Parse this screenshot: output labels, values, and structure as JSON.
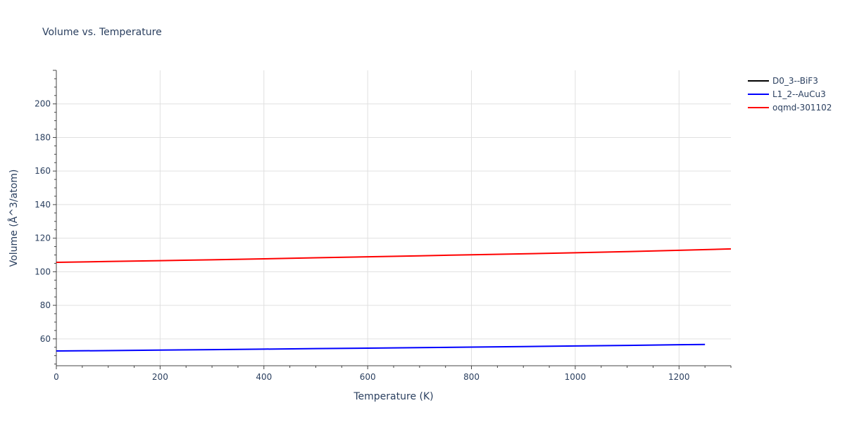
{
  "chart_data": {
    "type": "line",
    "title": "Volume vs. Temperature",
    "xlabel": "Temperature (K)",
    "ylabel": "Volume (Å^3/atom)",
    "xlim": [
      0,
      1300
    ],
    "ylim": [
      44,
      220
    ],
    "x_ticks": [
      0,
      200,
      400,
      600,
      800,
      1000,
      1200
    ],
    "y_ticks": [
      60,
      80,
      100,
      120,
      140,
      160,
      180,
      200
    ],
    "grid": true,
    "legend_position": "top-right",
    "series": [
      {
        "name": "D0_3--BiF3",
        "color": "#000000",
        "x": [],
        "y": []
      },
      {
        "name": "L1_2--AuCu3",
        "color": "#0000ff",
        "x": [
          0,
          100,
          200,
          300,
          400,
          500,
          600,
          700,
          800,
          900,
          1000,
          1100,
          1200,
          1250
        ],
        "y": [
          52.8,
          53.0,
          53.3,
          53.6,
          53.9,
          54.2,
          54.5,
          54.8,
          55.1,
          55.4,
          55.8,
          56.1,
          56.5,
          56.7
        ]
      },
      {
        "name": "oqmd-301102",
        "color": "#ff0000",
        "x": [
          0,
          100,
          200,
          300,
          400,
          500,
          600,
          700,
          800,
          900,
          1000,
          1100,
          1200,
          1300
        ],
        "y": [
          105.6,
          106.1,
          106.6,
          107.1,
          107.7,
          108.3,
          108.9,
          109.5,
          110.1,
          110.7,
          111.3,
          112.0,
          112.8,
          113.6
        ]
      }
    ]
  }
}
